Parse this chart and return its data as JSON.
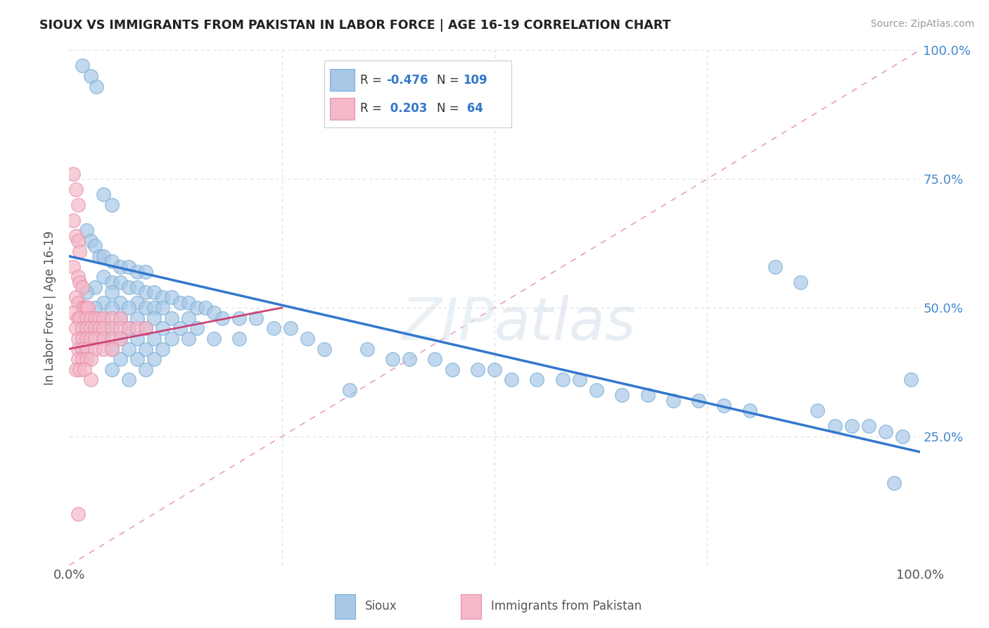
{
  "title": "SIOUX VS IMMIGRANTS FROM PAKISTAN IN LABOR FORCE | AGE 16-19 CORRELATION CHART",
  "source_text": "Source: ZipAtlas.com",
  "ylabel": "In Labor Force | Age 16-19",
  "xlim": [
    0,
    1
  ],
  "ylim": [
    0,
    1
  ],
  "ytick_labels_right": [
    "25.0%",
    "50.0%",
    "75.0%",
    "100.0%"
  ],
  "sioux_color": "#a8c8e8",
  "sioux_edge_color": "#7aafd4",
  "pakistan_color": "#f4b8c8",
  "pakistan_edge_color": "#e890a8",
  "sioux_line_color": "#3377cc",
  "pakistan_line_color": "#cc4477",
  "ref_line_color": "#e8a0b8",
  "watermark_color": "#e8eef5",
  "background_color": "#ffffff",
  "grid_color": "#dddddd",
  "R_sioux": -0.476,
  "N_sioux": 109,
  "R_pakistan": 0.203,
  "N_pakistan": 64,
  "sioux_scatter": [
    [
      0.015,
      0.97
    ],
    [
      0.025,
      0.95
    ],
    [
      0.032,
      0.93
    ],
    [
      0.04,
      0.72
    ],
    [
      0.05,
      0.7
    ],
    [
      0.02,
      0.65
    ],
    [
      0.025,
      0.63
    ],
    [
      0.03,
      0.62
    ],
    [
      0.035,
      0.6
    ],
    [
      0.04,
      0.6
    ],
    [
      0.05,
      0.59
    ],
    [
      0.06,
      0.58
    ],
    [
      0.07,
      0.58
    ],
    [
      0.08,
      0.57
    ],
    [
      0.09,
      0.57
    ],
    [
      0.04,
      0.56
    ],
    [
      0.05,
      0.55
    ],
    [
      0.06,
      0.55
    ],
    [
      0.03,
      0.54
    ],
    [
      0.07,
      0.54
    ],
    [
      0.08,
      0.54
    ],
    [
      0.02,
      0.53
    ],
    [
      0.05,
      0.53
    ],
    [
      0.09,
      0.53
    ],
    [
      0.1,
      0.53
    ],
    [
      0.11,
      0.52
    ],
    [
      0.12,
      0.52
    ],
    [
      0.04,
      0.51
    ],
    [
      0.06,
      0.51
    ],
    [
      0.08,
      0.51
    ],
    [
      0.13,
      0.51
    ],
    [
      0.14,
      0.51
    ],
    [
      0.03,
      0.5
    ],
    [
      0.05,
      0.5
    ],
    [
      0.07,
      0.5
    ],
    [
      0.09,
      0.5
    ],
    [
      0.1,
      0.5
    ],
    [
      0.11,
      0.5
    ],
    [
      0.15,
      0.5
    ],
    [
      0.16,
      0.5
    ],
    [
      0.17,
      0.49
    ],
    [
      0.04,
      0.48
    ],
    [
      0.06,
      0.48
    ],
    [
      0.08,
      0.48
    ],
    [
      0.1,
      0.48
    ],
    [
      0.12,
      0.48
    ],
    [
      0.14,
      0.48
    ],
    [
      0.18,
      0.48
    ],
    [
      0.2,
      0.48
    ],
    [
      0.22,
      0.48
    ],
    [
      0.03,
      0.46
    ],
    [
      0.05,
      0.46
    ],
    [
      0.07,
      0.46
    ],
    [
      0.09,
      0.46
    ],
    [
      0.11,
      0.46
    ],
    [
      0.13,
      0.46
    ],
    [
      0.15,
      0.46
    ],
    [
      0.24,
      0.46
    ],
    [
      0.26,
      0.46
    ],
    [
      0.04,
      0.44
    ],
    [
      0.06,
      0.44
    ],
    [
      0.08,
      0.44
    ],
    [
      0.1,
      0.44
    ],
    [
      0.12,
      0.44
    ],
    [
      0.14,
      0.44
    ],
    [
      0.17,
      0.44
    ],
    [
      0.2,
      0.44
    ],
    [
      0.28,
      0.44
    ],
    [
      0.05,
      0.42
    ],
    [
      0.07,
      0.42
    ],
    [
      0.09,
      0.42
    ],
    [
      0.11,
      0.42
    ],
    [
      0.3,
      0.42
    ],
    [
      0.35,
      0.42
    ],
    [
      0.06,
      0.4
    ],
    [
      0.08,
      0.4
    ],
    [
      0.1,
      0.4
    ],
    [
      0.38,
      0.4
    ],
    [
      0.4,
      0.4
    ],
    [
      0.43,
      0.4
    ],
    [
      0.05,
      0.38
    ],
    [
      0.09,
      0.38
    ],
    [
      0.45,
      0.38
    ],
    [
      0.48,
      0.38
    ],
    [
      0.5,
      0.38
    ],
    [
      0.07,
      0.36
    ],
    [
      0.52,
      0.36
    ],
    [
      0.55,
      0.36
    ],
    [
      0.58,
      0.36
    ],
    [
      0.6,
      0.36
    ],
    [
      0.33,
      0.34
    ],
    [
      0.62,
      0.34
    ],
    [
      0.65,
      0.33
    ],
    [
      0.68,
      0.33
    ],
    [
      0.71,
      0.32
    ],
    [
      0.74,
      0.32
    ],
    [
      0.77,
      0.31
    ],
    [
      0.8,
      0.3
    ],
    [
      0.83,
      0.58
    ],
    [
      0.86,
      0.55
    ],
    [
      0.88,
      0.3
    ],
    [
      0.9,
      0.27
    ],
    [
      0.92,
      0.27
    ],
    [
      0.94,
      0.27
    ],
    [
      0.96,
      0.26
    ],
    [
      0.98,
      0.25
    ],
    [
      0.99,
      0.36
    ],
    [
      0.97,
      0.16
    ]
  ],
  "pakistan_scatter": [
    [
      0.005,
      0.76
    ],
    [
      0.008,
      0.73
    ],
    [
      0.01,
      0.7
    ],
    [
      0.005,
      0.67
    ],
    [
      0.008,
      0.64
    ],
    [
      0.01,
      0.63
    ],
    [
      0.012,
      0.61
    ],
    [
      0.005,
      0.58
    ],
    [
      0.01,
      0.56
    ],
    [
      0.012,
      0.55
    ],
    [
      0.015,
      0.54
    ],
    [
      0.008,
      0.52
    ],
    [
      0.01,
      0.51
    ],
    [
      0.015,
      0.5
    ],
    [
      0.018,
      0.5
    ],
    [
      0.02,
      0.5
    ],
    [
      0.022,
      0.5
    ],
    [
      0.005,
      0.49
    ],
    [
      0.01,
      0.48
    ],
    [
      0.012,
      0.48
    ],
    [
      0.02,
      0.48
    ],
    [
      0.025,
      0.48
    ],
    [
      0.03,
      0.48
    ],
    [
      0.035,
      0.48
    ],
    [
      0.04,
      0.48
    ],
    [
      0.05,
      0.48
    ],
    [
      0.06,
      0.48
    ],
    [
      0.008,
      0.46
    ],
    [
      0.015,
      0.46
    ],
    [
      0.02,
      0.46
    ],
    [
      0.025,
      0.46
    ],
    [
      0.03,
      0.46
    ],
    [
      0.035,
      0.46
    ],
    [
      0.04,
      0.46
    ],
    [
      0.05,
      0.46
    ],
    [
      0.06,
      0.46
    ],
    [
      0.07,
      0.46
    ],
    [
      0.08,
      0.46
    ],
    [
      0.09,
      0.46
    ],
    [
      0.01,
      0.44
    ],
    [
      0.015,
      0.44
    ],
    [
      0.02,
      0.44
    ],
    [
      0.025,
      0.44
    ],
    [
      0.03,
      0.44
    ],
    [
      0.04,
      0.44
    ],
    [
      0.05,
      0.44
    ],
    [
      0.06,
      0.44
    ],
    [
      0.01,
      0.42
    ],
    [
      0.015,
      0.42
    ],
    [
      0.02,
      0.42
    ],
    [
      0.03,
      0.42
    ],
    [
      0.04,
      0.42
    ],
    [
      0.05,
      0.42
    ],
    [
      0.01,
      0.4
    ],
    [
      0.015,
      0.4
    ],
    [
      0.02,
      0.4
    ],
    [
      0.025,
      0.4
    ],
    [
      0.008,
      0.38
    ],
    [
      0.012,
      0.38
    ],
    [
      0.018,
      0.38
    ],
    [
      0.025,
      0.36
    ],
    [
      0.01,
      0.1
    ]
  ],
  "sioux_line": {
    "x0": 0.0,
    "y0": 0.6,
    "x1": 1.0,
    "y1": 0.22
  },
  "pakistan_line": {
    "x0": 0.0,
    "y0": 0.42,
    "x1": 0.25,
    "y1": 0.5
  },
  "ref_line": {
    "x0": 0.0,
    "y0": 0.0,
    "x1": 1.0,
    "y1": 1.0
  }
}
